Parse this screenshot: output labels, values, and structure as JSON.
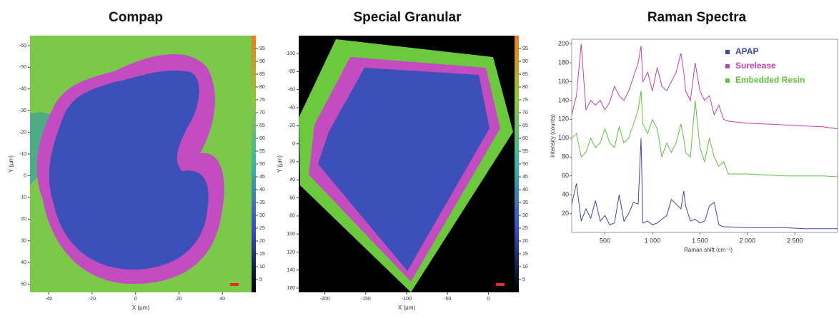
{
  "chart_data": [
    {
      "type": "map",
      "title": "Compap",
      "xlabel": "X (µm)",
      "ylabel": "Y (µm)",
      "xlim": [
        -48.6,
        53.4
      ],
      "xticks": [
        -40,
        -20,
        0,
        20,
        40
      ],
      "ylim": [
        53.8,
        -64.6
      ],
      "yticks": [
        -60,
        -50,
        -40,
        -30,
        -20,
        -10,
        0,
        10,
        20,
        30,
        40,
        50
      ],
      "colorbar_lim": [
        0,
        100
      ],
      "colorbar_ticks": [
        95,
        90,
        85,
        80,
        75,
        70,
        65,
        60,
        55,
        50,
        45,
        40,
        35,
        30,
        25,
        20,
        15,
        10,
        5
      ]
    },
    {
      "type": "map",
      "title": "Special Granular",
      "xlabel": "X (µm)",
      "ylabel": "Y (µm)",
      "xlim": [
        -232,
        32
      ],
      "xticks": [
        -200,
        -150,
        -100,
        -50,
        0
      ],
      "ylim": [
        164.7,
        -119.8
      ],
      "yticks": [
        -100,
        -80,
        -60,
        -40,
        -20,
        0,
        20,
        40,
        60,
        80,
        100,
        120,
        140,
        160
      ],
      "colorbar_lim": [
        0,
        100
      ],
      "colorbar_ticks": [
        95,
        90,
        85,
        80,
        75,
        70,
        65,
        60,
        55,
        50,
        45,
        40,
        35,
        30,
        25,
        20,
        15,
        10,
        5
      ]
    },
    {
      "type": "line",
      "title": "Raman Spectra",
      "xlabel": "Raman shift (cm⁻¹)",
      "ylabel": "Intensity (counts)",
      "xlim": [
        150,
        2950
      ],
      "xticks": [
        500,
        {
          "value": 1000,
          "label": "1 000"
        },
        {
          "value": 1500,
          "label": "1 500"
        },
        {
          "value": 2000,
          "label": "2 000"
        },
        {
          "value": 2500,
          "label": "2 500"
        }
      ],
      "ylim": [
        0,
        205
      ],
      "yticks": [
        20,
        40,
        60,
        80,
        100,
        120,
        140,
        160,
        180,
        200
      ],
      "x": [
        150,
        200,
        250,
        300,
        350,
        400,
        450,
        500,
        550,
        600,
        650,
        700,
        750,
        800,
        850,
        880,
        900,
        950,
        1000,
        1050,
        1100,
        1150,
        1200,
        1250,
        1300,
        1330,
        1350,
        1400,
        1450,
        1500,
        1550,
        1600,
        1650,
        1700,
        1750,
        1800,
        2000,
        2200,
        2400,
        2600,
        2800,
        2950
      ],
      "series": [
        {
          "name": "APAP",
          "color": "#3b47b0",
          "values": [
            30,
            52,
            12,
            25,
            15,
            34,
            12,
            18,
            8,
            10,
            40,
            12,
            20,
            32,
            30,
            100,
            10,
            12,
            8,
            10,
            14,
            18,
            35,
            30,
            25,
            44,
            28,
            12,
            14,
            10,
            12,
            28,
            32,
            8,
            6,
            6,
            5,
            5,
            5,
            4,
            4,
            4
          ]
        },
        {
          "name": "Surelease",
          "color": "#c040b0",
          "values": [
            125,
            145,
            200,
            130,
            140,
            135,
            140,
            130,
            138,
            155,
            145,
            140,
            150,
            165,
            180,
            198,
            160,
            170,
            150,
            175,
            155,
            150,
            160,
            170,
            190,
            170,
            150,
            140,
            180,
            150,
            140,
            145,
            125,
            135,
            120,
            118,
            116,
            115,
            114,
            113,
            112,
            110
          ]
        },
        {
          "name": "Embedded Resin",
          "color": "#5ec23c",
          "values": [
            100,
            105,
            80,
            85,
            100,
            90,
            95,
            110,
            95,
            90,
            112,
            95,
            100,
            115,
            130,
            150,
            115,
            105,
            120,
            110,
            80,
            95,
            85,
            95,
            115,
            100,
            85,
            80,
            140,
            90,
            75,
            100,
            80,
            70,
            75,
            62,
            62,
            61,
            60,
            60,
            60,
            59
          ]
        }
      ],
      "legend": "upper right"
    }
  ]
}
